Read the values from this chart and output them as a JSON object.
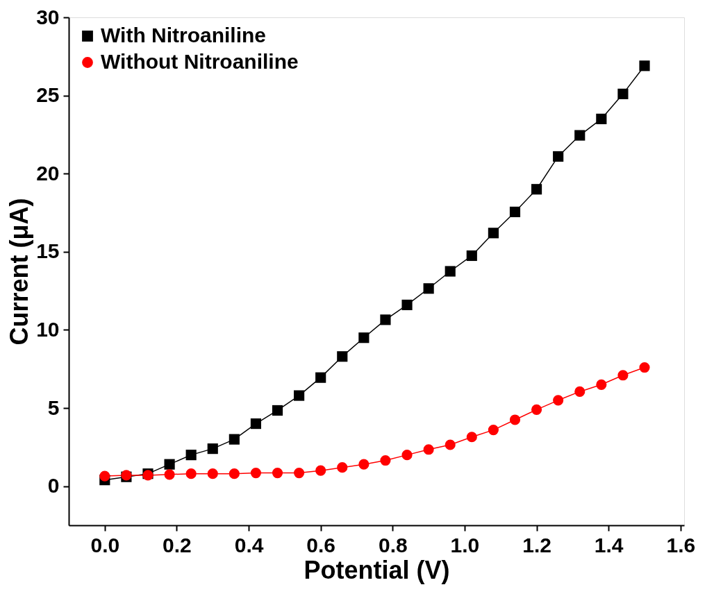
{
  "chart_data": {
    "type": "line",
    "xlabel": "Potential (V)",
    "ylabel": "Current (μA)",
    "xlim": [
      -0.1,
      1.61
    ],
    "ylim": [
      -2.5,
      30
    ],
    "xticks": [
      {
        "value": 0,
        "label": "0.0"
      },
      {
        "value": 0.2,
        "label": "0.2"
      },
      {
        "value": 0.4,
        "label": "0.4"
      },
      {
        "value": 0.6,
        "label": "0.6"
      },
      {
        "value": 0.8,
        "label": "0.8"
      },
      {
        "value": 1.0,
        "label": "1.0"
      },
      {
        "value": 1.2,
        "label": "1.2"
      },
      {
        "value": 1.4,
        "label": "1.4"
      },
      {
        "value": 1.6,
        "label": "1.6"
      }
    ],
    "yticks": [
      0,
      5,
      10,
      15,
      20,
      25,
      30
    ],
    "x": [
      0,
      0.06,
      0.12,
      0.18,
      0.24,
      0.3,
      0.36,
      0.42,
      0.48,
      0.54,
      0.6,
      0.66,
      0.72,
      0.78,
      0.84,
      0.9,
      0.96,
      1.02,
      1.08,
      1.14,
      1.2,
      1.26,
      1.32,
      1.38,
      1.44,
      1.5
    ],
    "grid": false,
    "legend": "top left",
    "line_style": "solid",
    "series": [
      {
        "name": "With Nitroaniline",
        "color": "#000000",
        "marker": "square",
        "values": [
          0.4,
          0.6,
          0.8,
          1.4,
          2.0,
          2.4,
          3.0,
          4.0,
          4.85,
          5.8,
          6.95,
          8.3,
          9.5,
          10.65,
          11.6,
          12.65,
          13.75,
          14.75,
          16.2,
          17.55,
          19.0,
          21.1,
          22.45,
          23.5,
          25.1,
          26.9
        ]
      },
      {
        "name": "Without Nitroaniline",
        "color": "#ff0000",
        "marker": "circle",
        "values": [
          0.65,
          0.7,
          0.7,
          0.75,
          0.8,
          0.8,
          0.8,
          0.85,
          0.85,
          0.85,
          1.0,
          1.2,
          1.4,
          1.65,
          2.0,
          2.35,
          2.65,
          3.15,
          3.6,
          4.25,
          4.9,
          5.5,
          6.05,
          6.5,
          7.1,
          7.6
        ]
      }
    ]
  }
}
